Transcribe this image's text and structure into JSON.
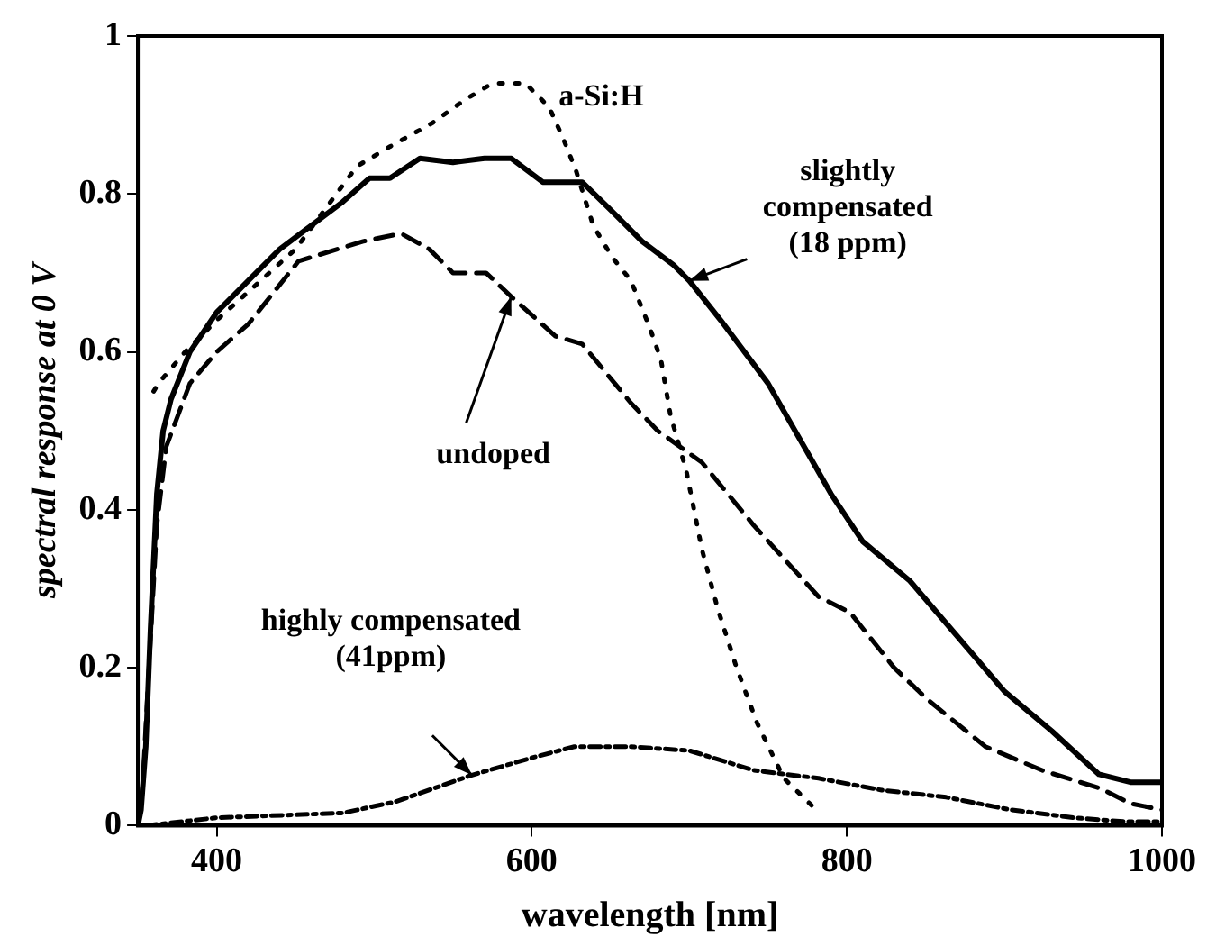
{
  "chart_data": {
    "type": "line",
    "xlabel": "wavelength [nm]",
    "ylabel": "spectral response at 0 V",
    "xlim": [
      350,
      1000
    ],
    "xticks": [
      400,
      600,
      800,
      1000
    ],
    "ylim": [
      0,
      1
    ],
    "yticks": [
      0,
      0.2,
      0.4,
      0.6,
      0.8,
      1
    ],
    "grid": false,
    "legend": false,
    "marker": "none",
    "series": [
      {
        "name": "slightly compensated (18 ppm)",
        "color": "#000000",
        "line_style": "solid",
        "x": [
          350,
          352,
          355,
          358,
          362,
          366,
          371,
          383,
          400,
          420,
          440,
          460,
          480,
          497,
          510,
          529,
          550,
          570,
          587,
          607,
          632,
          650,
          670,
          690,
          700,
          720,
          750,
          770,
          790,
          810,
          840,
          870,
          900,
          930,
          960,
          980,
          1000
        ],
        "values": [
          0,
          0.02,
          0.1,
          0.25,
          0.42,
          0.5,
          0.54,
          0.6,
          0.65,
          0.69,
          0.73,
          0.76,
          0.79,
          0.82,
          0.82,
          0.845,
          0.84,
          0.845,
          0.845,
          0.815,
          0.815,
          0.78,
          0.74,
          0.71,
          0.69,
          0.64,
          0.56,
          0.49,
          0.42,
          0.36,
          0.31,
          0.24,
          0.17,
          0.12,
          0.065,
          0.055,
          0.055
        ]
      },
      {
        "name": "undoped",
        "color": "#000000",
        "line_style": "dashed",
        "x": [
          350,
          353,
          357,
          362,
          368,
          383,
          400,
          420,
          452,
          493,
          517,
          535,
          550,
          571,
          587,
          615,
          632,
          663,
          680,
          708,
          741,
          782,
          802,
          830,
          851,
          888,
          924,
          961,
          980,
          1000
        ],
        "values": [
          0,
          0.05,
          0.2,
          0.38,
          0.48,
          0.56,
          0.6,
          0.635,
          0.715,
          0.74,
          0.75,
          0.73,
          0.7,
          0.7,
          0.67,
          0.62,
          0.61,
          0.535,
          0.5,
          0.46,
          0.38,
          0.29,
          0.27,
          0.2,
          0.16,
          0.1,
          0.07,
          0.047,
          0.028,
          0.02
        ]
      },
      {
        "name": "a-Si:H",
        "color": "#000000",
        "line_style": "dotted",
        "x": [
          360,
          363,
          380,
          400,
          450,
          489,
          510,
          537,
          558,
          575,
          596,
          611,
          620,
          628,
          639,
          651,
          663,
          675,
          682,
          688,
          698,
          708,
          718,
          730,
          743,
          760,
          778
        ],
        "values": [
          0.55,
          0.56,
          0.6,
          0.64,
          0.73,
          0.835,
          0.86,
          0.89,
          0.92,
          0.94,
          0.94,
          0.91,
          0.87,
          0.83,
          0.76,
          0.72,
          0.69,
          0.63,
          0.59,
          0.52,
          0.45,
          0.35,
          0.275,
          0.2,
          0.13,
          0.06,
          0.025
        ]
      },
      {
        "name": "highly compensated (41ppm)",
        "color": "#000000",
        "line_style": "dashdot",
        "x": [
          355,
          400,
          480,
          513,
          562,
          602,
          627,
          663,
          700,
          741,
          782,
          822,
          863,
          904,
          944,
          977,
          1000
        ],
        "values": [
          0,
          0.01,
          0.016,
          0.03,
          0.064,
          0.087,
          0.1,
          0.1,
          0.095,
          0.07,
          0.06,
          0.045,
          0.036,
          0.02,
          0.01,
          0.005,
          0.005
        ]
      }
    ]
  }
}
